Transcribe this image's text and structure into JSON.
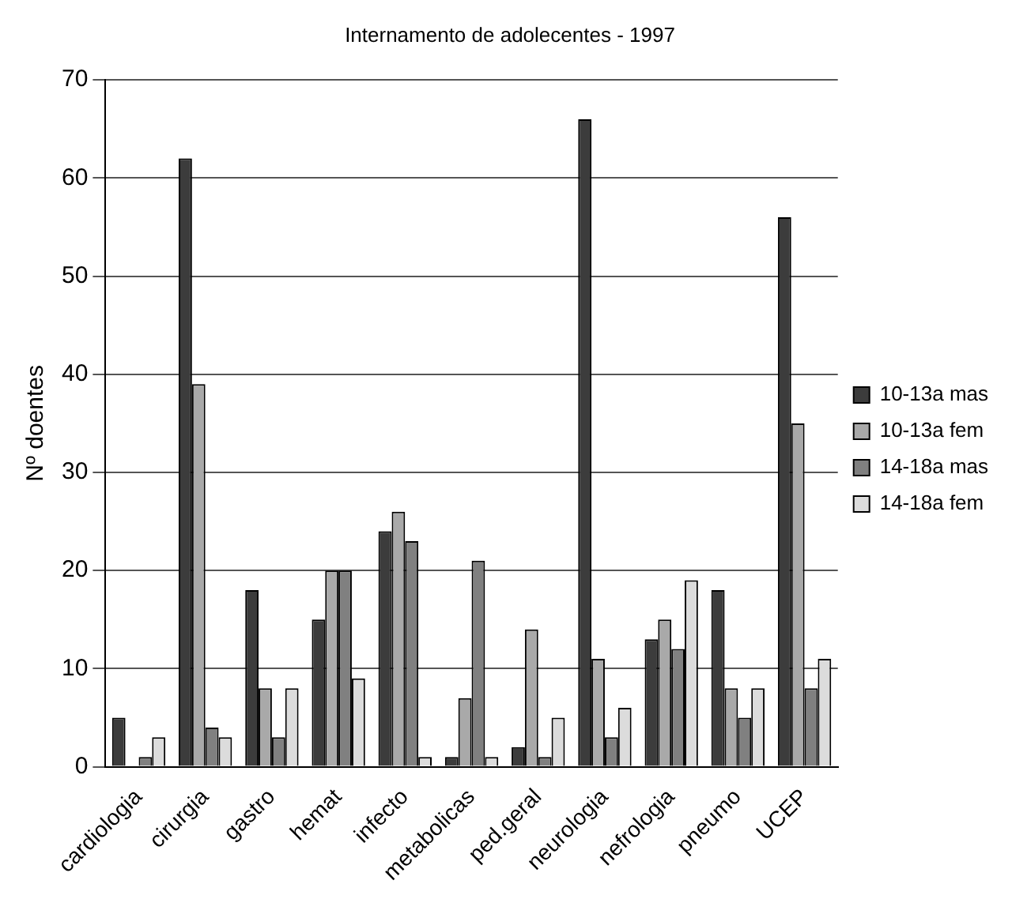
{
  "chart_data": {
    "type": "bar",
    "title": "Internamento de adolecentes - 1997",
    "ylabel": "Nº doentes",
    "categories": [
      "cardiologia",
      "cirurgia",
      "gastro",
      "hemat",
      "infecto",
      "metabolicas",
      "ped.geral",
      "neurologia",
      "nefrologia",
      "pneumo",
      "UCEP"
    ],
    "series": [
      {
        "name": "10-13a mas",
        "color": "#3c3c3c",
        "values": [
          5,
          62,
          18,
          15,
          24,
          1,
          2,
          66,
          13,
          18,
          56
        ]
      },
      {
        "name": "10-13a fem",
        "color": "#a9a9a9",
        "values": [
          0,
          39,
          8,
          20,
          26,
          7,
          14,
          11,
          15,
          8,
          35
        ]
      },
      {
        "name": "14-18a mas",
        "color": "#808080",
        "values": [
          1,
          4,
          3,
          20,
          23,
          21,
          1,
          3,
          12,
          5,
          8
        ]
      },
      {
        "name": "14-18a fem",
        "color": "#dcdcdc",
        "values": [
          3,
          3,
          8,
          9,
          1,
          1,
          5,
          6,
          19,
          8,
          11
        ]
      }
    ],
    "ylim": [
      0,
      70
    ],
    "yticks": [
      0,
      10,
      20,
      30,
      40,
      50,
      60,
      70
    ],
    "grid": "y",
    "legend": "right"
  }
}
